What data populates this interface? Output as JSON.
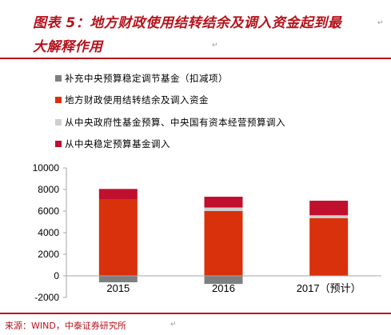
{
  "header": {
    "title_line1": "图表 5：地方财政使用结转结余及调入资金起到最",
    "title_line2": "大解释作用"
  },
  "source": "来源：WIND，中泰证券研究所",
  "colors": {
    "accent": "#b5121b",
    "series": [
      "#7f7f7f",
      "#d9310b",
      "#d0cece",
      "#c0102e"
    ]
  },
  "chart_data": {
    "type": "bar",
    "stacked": true,
    "categories": [
      "2015",
      "2016",
      "2017（预计）"
    ],
    "series": [
      {
        "name": "补充中央预算稳定调节基金（扣减项）",
        "values": [
          -600,
          -750,
          0
        ]
      },
      {
        "name": "地方财政使用结转结余及调入资金",
        "values": [
          7050,
          6000,
          5350
        ]
      },
      {
        "name": "从中央政府性基金预算、中央国有资本经营预算调入",
        "values": [
          0,
          330,
          260
        ]
      },
      {
        "name": "从中央稳定预算基金调入",
        "values": [
          1000,
          1000,
          1350
        ]
      }
    ],
    "ylim": [
      -2000,
      10000
    ],
    "yticks": [
      "10000",
      "8000",
      "6000",
      "4000",
      "2000",
      "0",
      "-2000"
    ],
    "grid": false,
    "legend_position": "top"
  }
}
